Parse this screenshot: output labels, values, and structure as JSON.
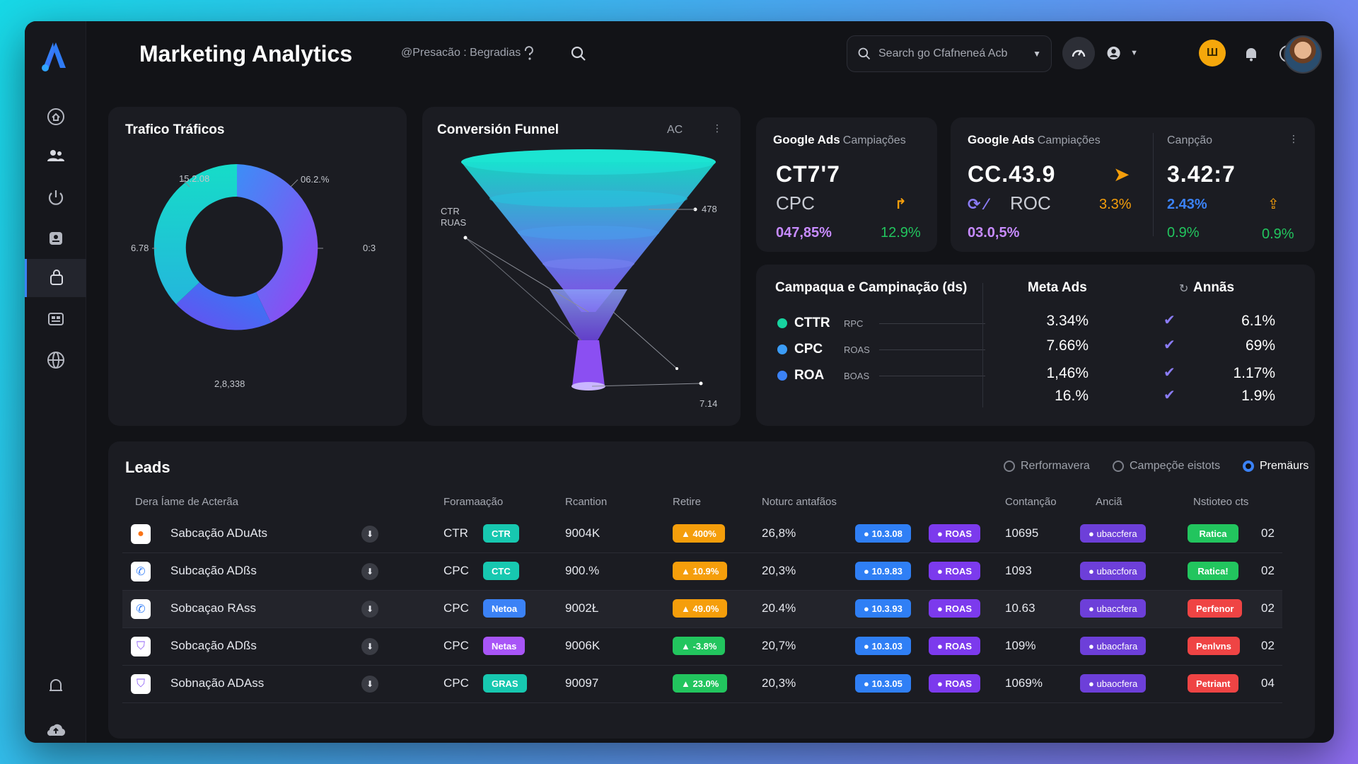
{
  "app": {
    "title": "Marketing Analytics",
    "breadcrumb": "@Presacão : Begradias"
  },
  "search": {
    "placeholder": "Search go Cfafneneá Acb"
  },
  "colors": {
    "accent_blue": "#3b82f6",
    "teal": "#17d4c0",
    "purple": "#9b59f5",
    "orange": "#f59e0b",
    "green": "#22c55e",
    "red": "#ef4444"
  },
  "sidebar": {
    "items": [
      {
        "icon": "home-icon"
      },
      {
        "icon": "users-icon"
      },
      {
        "icon": "power-icon"
      },
      {
        "icon": "inbox-icon"
      },
      {
        "icon": "bag-icon",
        "active": true
      },
      {
        "icon": "layout-icon"
      },
      {
        "icon": "globe-icon"
      }
    ],
    "bottom": [
      {
        "icon": "bell-icon"
      },
      {
        "icon": "upload-icon"
      }
    ]
  },
  "traffic": {
    "title": "Trafico Tráficos",
    "labels": {
      "top_left": "15.2.08",
      "top_right": "06.2.%",
      "left": "6.78",
      "right": "0:3",
      "bottom": "2,8,338"
    }
  },
  "funnel": {
    "title": "Conversión Funnel",
    "tag": "AC",
    "labels": {
      "left": "CTR\nRUAS",
      "right_top": "478",
      "bottom_right": "7.14"
    }
  },
  "kpi1": {
    "title": "Google Ads",
    "subtitle": "Campiações",
    "big": "CT7'7",
    "mid": "CPC",
    "pct_left": "047,85%",
    "pct_right": "12.9%"
  },
  "kpi2": {
    "title": "Google Ads",
    "subtitle": "Campiações",
    "big": "CC.43.9",
    "mid": "ROC",
    "pct_mid": "3.3%",
    "pct_left": "03.0,5%",
    "col2_label": "Canpção",
    "col2_big": "3.42:7",
    "col2_pct1": "2.43%",
    "col2_pct2": "0.9%",
    "col2_pct3": "0.9%"
  },
  "campaign": {
    "title": "Campaqua e Campinação (ds)",
    "meta_title": "Meta Ads",
    "annas_title": "Annãs",
    "legend": [
      {
        "name": "CTTR",
        "tag": "RPC",
        "color": "#17d4a0"
      },
      {
        "name": "CPC",
        "tag": "ROAS",
        "color": "#3b9cf6"
      },
      {
        "name": "ROA",
        "tag": "BOAS",
        "color": "#3b82f6"
      }
    ],
    "meta_values": [
      "3.34%",
      "7.66%",
      "1,46%",
      "16.%"
    ],
    "annas_values": [
      "6.1%",
      "69%",
      "1.17%",
      "1.9%"
    ]
  },
  "leads": {
    "title": "Leads",
    "filters": [
      "Rerformavera",
      "Campeçõe eistots",
      "Premäurs"
    ],
    "headers": [
      "Dera Íame de Acterãa",
      "Foramaação",
      "Rcantion",
      "Retire",
      "Noturc antafãos",
      "Contanção",
      "Anciã",
      "Nstioteo cts"
    ],
    "rows": [
      {
        "icon_color": "#f97316",
        "name": "Sabcação ADuAts",
        "type": "CTR",
        "type_pill": "CTR",
        "type_pill_color": "#17c8b0",
        "rcant": "9004K",
        "retire": "400%",
        "retire_color": "#f59e0b",
        "notur": "26,8%",
        "badge_val": "10.3.08",
        "roas": "ROAS",
        "contan": "10695",
        "ancia": "ubaccfera",
        "status": "Ratica",
        "status_color": "#22c55e",
        "num": "02"
      },
      {
        "icon_color": "#3b82f6",
        "name": "Subcação ADßs",
        "type": "CPC",
        "type_pill": "CTC",
        "type_pill_color": "#17c8b0",
        "rcant": "900.%",
        "retire": "10.9%",
        "retire_color": "#f59e0b",
        "notur": "20,3%",
        "badge_val": "10.9.83",
        "roas": "ROAS",
        "contan": "1093",
        "ancia": "ubaccfora",
        "status": "Ratica!",
        "status_color": "#22c55e",
        "num": "02"
      },
      {
        "icon_color": "#3b82f6",
        "name": "Sobcaçao RAss",
        "type": "CPC",
        "type_pill": "Netoa",
        "type_pill_color": "#3b82f6",
        "rcant": "9002Ł",
        "retire": "49.0%",
        "retire_color": "#f59e0b",
        "notur": "20.4%",
        "badge_val": "10.3.93",
        "roas": "ROAS",
        "contan": "10.63",
        "ancia": "ubaccfera",
        "status": "Perfenor",
        "status_color": "#ef4444",
        "num": "02"
      },
      {
        "icon_color": "#8b5cf6",
        "name": "Sobcação ADßs",
        "type": "CPC",
        "type_pill": "Netas",
        "type_pill_color": "#a855f7",
        "rcant": "9006K",
        "retire": "-3.8%",
        "retire_color": "#22c55e",
        "notur": "20,7%",
        "badge_val": "10.3.03",
        "roas": "ROAS",
        "contan": "109%",
        "ancia": "ubaocfara",
        "status": "Penlvns",
        "status_color": "#ef4444",
        "num": "02"
      },
      {
        "icon_color": "#8b5cf6",
        "name": "Sobnação ADAss",
        "type": "CPC",
        "type_pill": "GRAS",
        "type_pill_color": "#17c8b0",
        "rcant": "90097",
        "retire": "23.0%",
        "retire_color": "#22c55e",
        "notur": "20,3%",
        "badge_val": "10.3.05",
        "roas": "ROAS",
        "contan": "1069%",
        "ancia": "ubaocfera",
        "status": "Petriant",
        "status_color": "#ef4444",
        "num": "04"
      }
    ]
  }
}
